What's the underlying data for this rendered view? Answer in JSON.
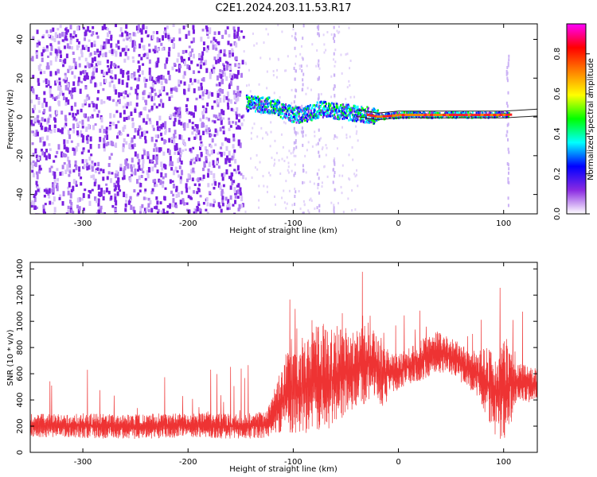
{
  "title": "C2E1.2024.203.11.53.R17",
  "colors": {
    "snr_line": "#ee3333",
    "spectrum_points": "#7a1fe0",
    "track_line": "#222222"
  },
  "chart_data": [
    {
      "type": "heatmap",
      "name": "spectrogram",
      "xlabel": "Height of straight line (km)",
      "ylabel": "Frequency (Hz)",
      "xlim": [
        -350,
        132
      ],
      "ylim": [
        -50,
        48
      ],
      "x_ticks": [
        -300,
        -200,
        -100,
        0,
        100
      ],
      "y_ticks": [
        -40,
        -20,
        0,
        20,
        40
      ],
      "grid": false,
      "description_values": {
        "noise_region_x": [
          -350,
          -148
        ],
        "signal_track_frequency_hz": [
          [
            -145,
            7
          ],
          [
            -130,
            6
          ],
          [
            -120,
            6
          ],
          [
            -110,
            3
          ],
          [
            -100,
            1
          ],
          [
            -90,
            1
          ],
          [
            -75,
            4
          ],
          [
            -60,
            3
          ],
          [
            -45,
            2
          ],
          [
            -30,
            1
          ],
          [
            -20,
            0
          ],
          [
            0,
            1
          ],
          [
            20,
            1
          ],
          [
            40,
            1
          ],
          [
            60,
            1
          ],
          [
            80,
            1
          ],
          [
            100,
            1
          ],
          [
            132,
            2
          ]
        ]
      },
      "colorbar": {
        "label": "Normalized spectral amplitude",
        "range": [
          0,
          0.95
        ],
        "ticks": [
          "0.0",
          "0.2",
          "0.4",
          "0.6",
          "0.8"
        ],
        "tick_values": [
          0.0,
          0.2,
          0.4,
          0.6,
          0.8
        ],
        "colormap": [
          "#ffffff",
          "#8a2be2",
          "#0000ff",
          "#00ffff",
          "#00ff00",
          "#ffff00",
          "#ff8000",
          "#ff0000",
          "#ff00ff"
        ]
      }
    },
    {
      "type": "line",
      "name": "snr",
      "xlabel": "Height of straight line (km)",
      "ylabel": "SNR (10 * v/v)",
      "xlim": [
        -350,
        132
      ],
      "ylim": [
        0,
        1450
      ],
      "x_ticks": [
        -300,
        -200,
        -100,
        0,
        100
      ],
      "y_ticks": [
        0,
        200,
        400,
        600,
        800,
        1000,
        1200,
        1400
      ],
      "grid": false,
      "envelope": [
        [
          -350,
          120,
          300
        ],
        [
          -320,
          110,
          290
        ],
        [
          -300,
          110,
          300
        ],
        [
          -260,
          100,
          290
        ],
        [
          -220,
          110,
          300
        ],
        [
          -180,
          110,
          300
        ],
        [
          -150,
          100,
          290
        ],
        [
          -125,
          110,
          320
        ],
        [
          -115,
          150,
          550
        ],
        [
          -105,
          150,
          800
        ],
        [
          -95,
          140,
          750
        ],
        [
          -85,
          150,
          900
        ],
        [
          -75,
          150,
          1000
        ],
        [
          -65,
          180,
          900
        ],
        [
          -55,
          250,
          1000
        ],
        [
          -45,
          300,
          900
        ],
        [
          -35,
          350,
          1000
        ],
        [
          -25,
          400,
          1000
        ],
        [
          -15,
          350,
          800
        ],
        [
          -5,
          450,
          750
        ],
        [
          5,
          500,
          780
        ],
        [
          15,
          520,
          820
        ],
        [
          25,
          560,
          880
        ],
        [
          35,
          600,
          930
        ],
        [
          45,
          600,
          900
        ],
        [
          55,
          560,
          850
        ],
        [
          65,
          500,
          800
        ],
        [
          75,
          420,
          780
        ],
        [
          85,
          250,
          800
        ],
        [
          95,
          80,
          850
        ],
        [
          105,
          120,
          900
        ],
        [
          115,
          400,
          700
        ],
        [
          125,
          380,
          650
        ],
        [
          132,
          400,
          650
        ]
      ]
    }
  ]
}
